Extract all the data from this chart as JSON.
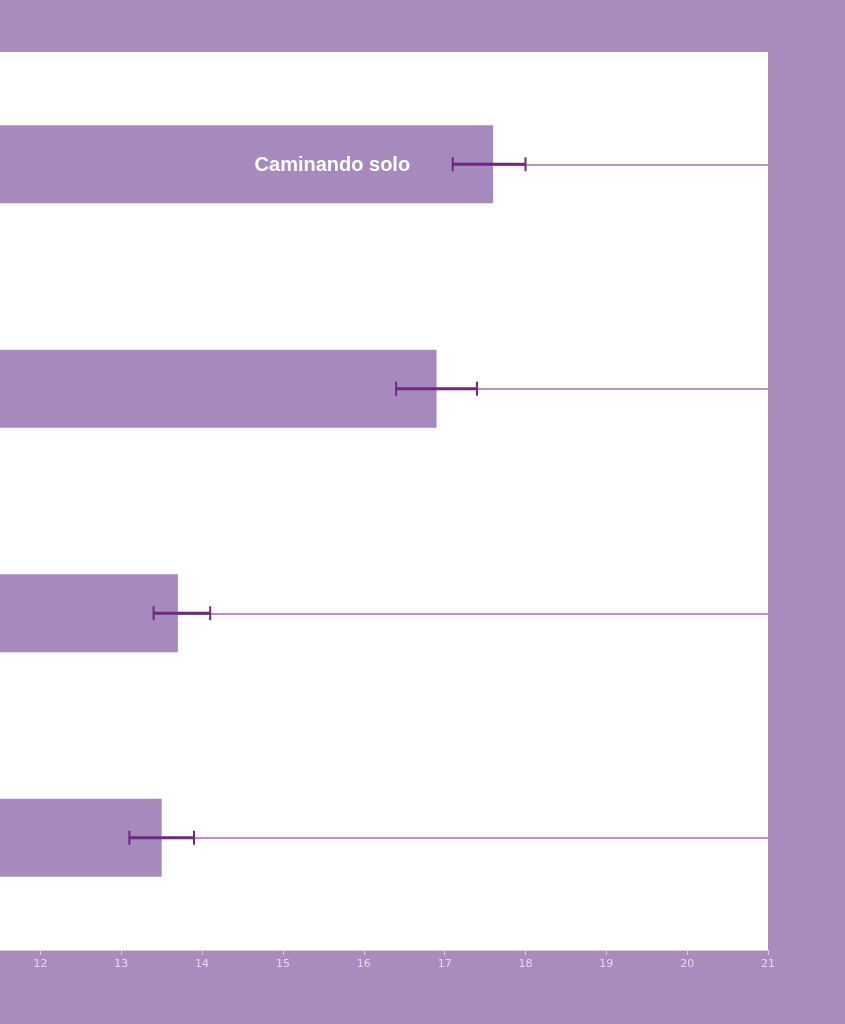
{
  "chart_data": {
    "type": "bar",
    "orientation": "horizontal",
    "categories": [
      null,
      null,
      null,
      null
    ],
    "annotations": [
      "Caminando solo"
    ],
    "values": [
      17.6,
      16.9,
      13.7,
      13.5
    ],
    "errors": [
      [
        17.1,
        18.0
      ],
      [
        16.4,
        17.4
      ],
      [
        13.4,
        14.1
      ],
      [
        13.1,
        13.9
      ]
    ],
    "color": "#a689bd",
    "xlim": [
      11.5,
      21
    ],
    "xticks": [
      12,
      13,
      14,
      15,
      16,
      17,
      18,
      19,
      20,
      21
    ],
    "grid": "y"
  }
}
